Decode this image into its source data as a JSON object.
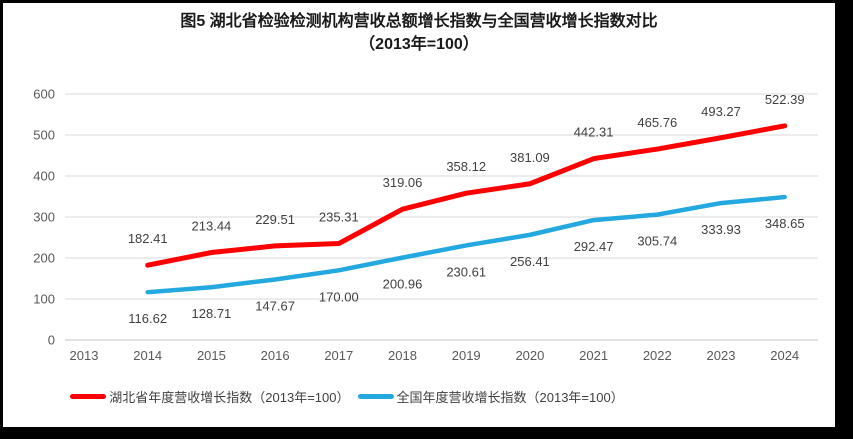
{
  "title": {
    "line1": "图5 湖北省检验检测机构营收总额增长指数与全国营收增长指数对比",
    "line2": "（2013年=100）"
  },
  "chart_data": {
    "type": "line",
    "title": "图5 湖北省检验检测机构营收总额增长指数与全国营收增长指数对比（2013年=100）",
    "categories": [
      "2013",
      "2014",
      "2015",
      "2016",
      "2017",
      "2018",
      "2019",
      "2020",
      "2021",
      "2022",
      "2023",
      "2024"
    ],
    "series": [
      {
        "name": "湖北省年度营收增长指数（2013年=100）",
        "color": "#fe0000",
        "values": [
          null,
          182.41,
          213.44,
          229.51,
          235.31,
          319.06,
          358.12,
          381.09,
          442.31,
          465.76,
          493.27,
          522.39
        ],
        "label_position": "above"
      },
      {
        "name": "全国年度营收增长指数（2013年=100）",
        "color": "#23a8e0",
        "values": [
          null,
          116.62,
          128.71,
          147.67,
          170.0,
          200.96,
          230.61,
          256.41,
          292.47,
          305.74,
          333.93,
          348.65
        ],
        "label_position": "below"
      }
    ],
    "xlabel": "",
    "ylabel": "",
    "ylim": [
      0,
      600
    ],
    "ytick_step": 100,
    "yticks": [
      0,
      100,
      200,
      300,
      400,
      500,
      600
    ],
    "grid": true,
    "legend_position": "bottom",
    "gridline_color": "#d9d9d9",
    "axis_label_color": "#595959",
    "data_label_color": "#404040"
  }
}
